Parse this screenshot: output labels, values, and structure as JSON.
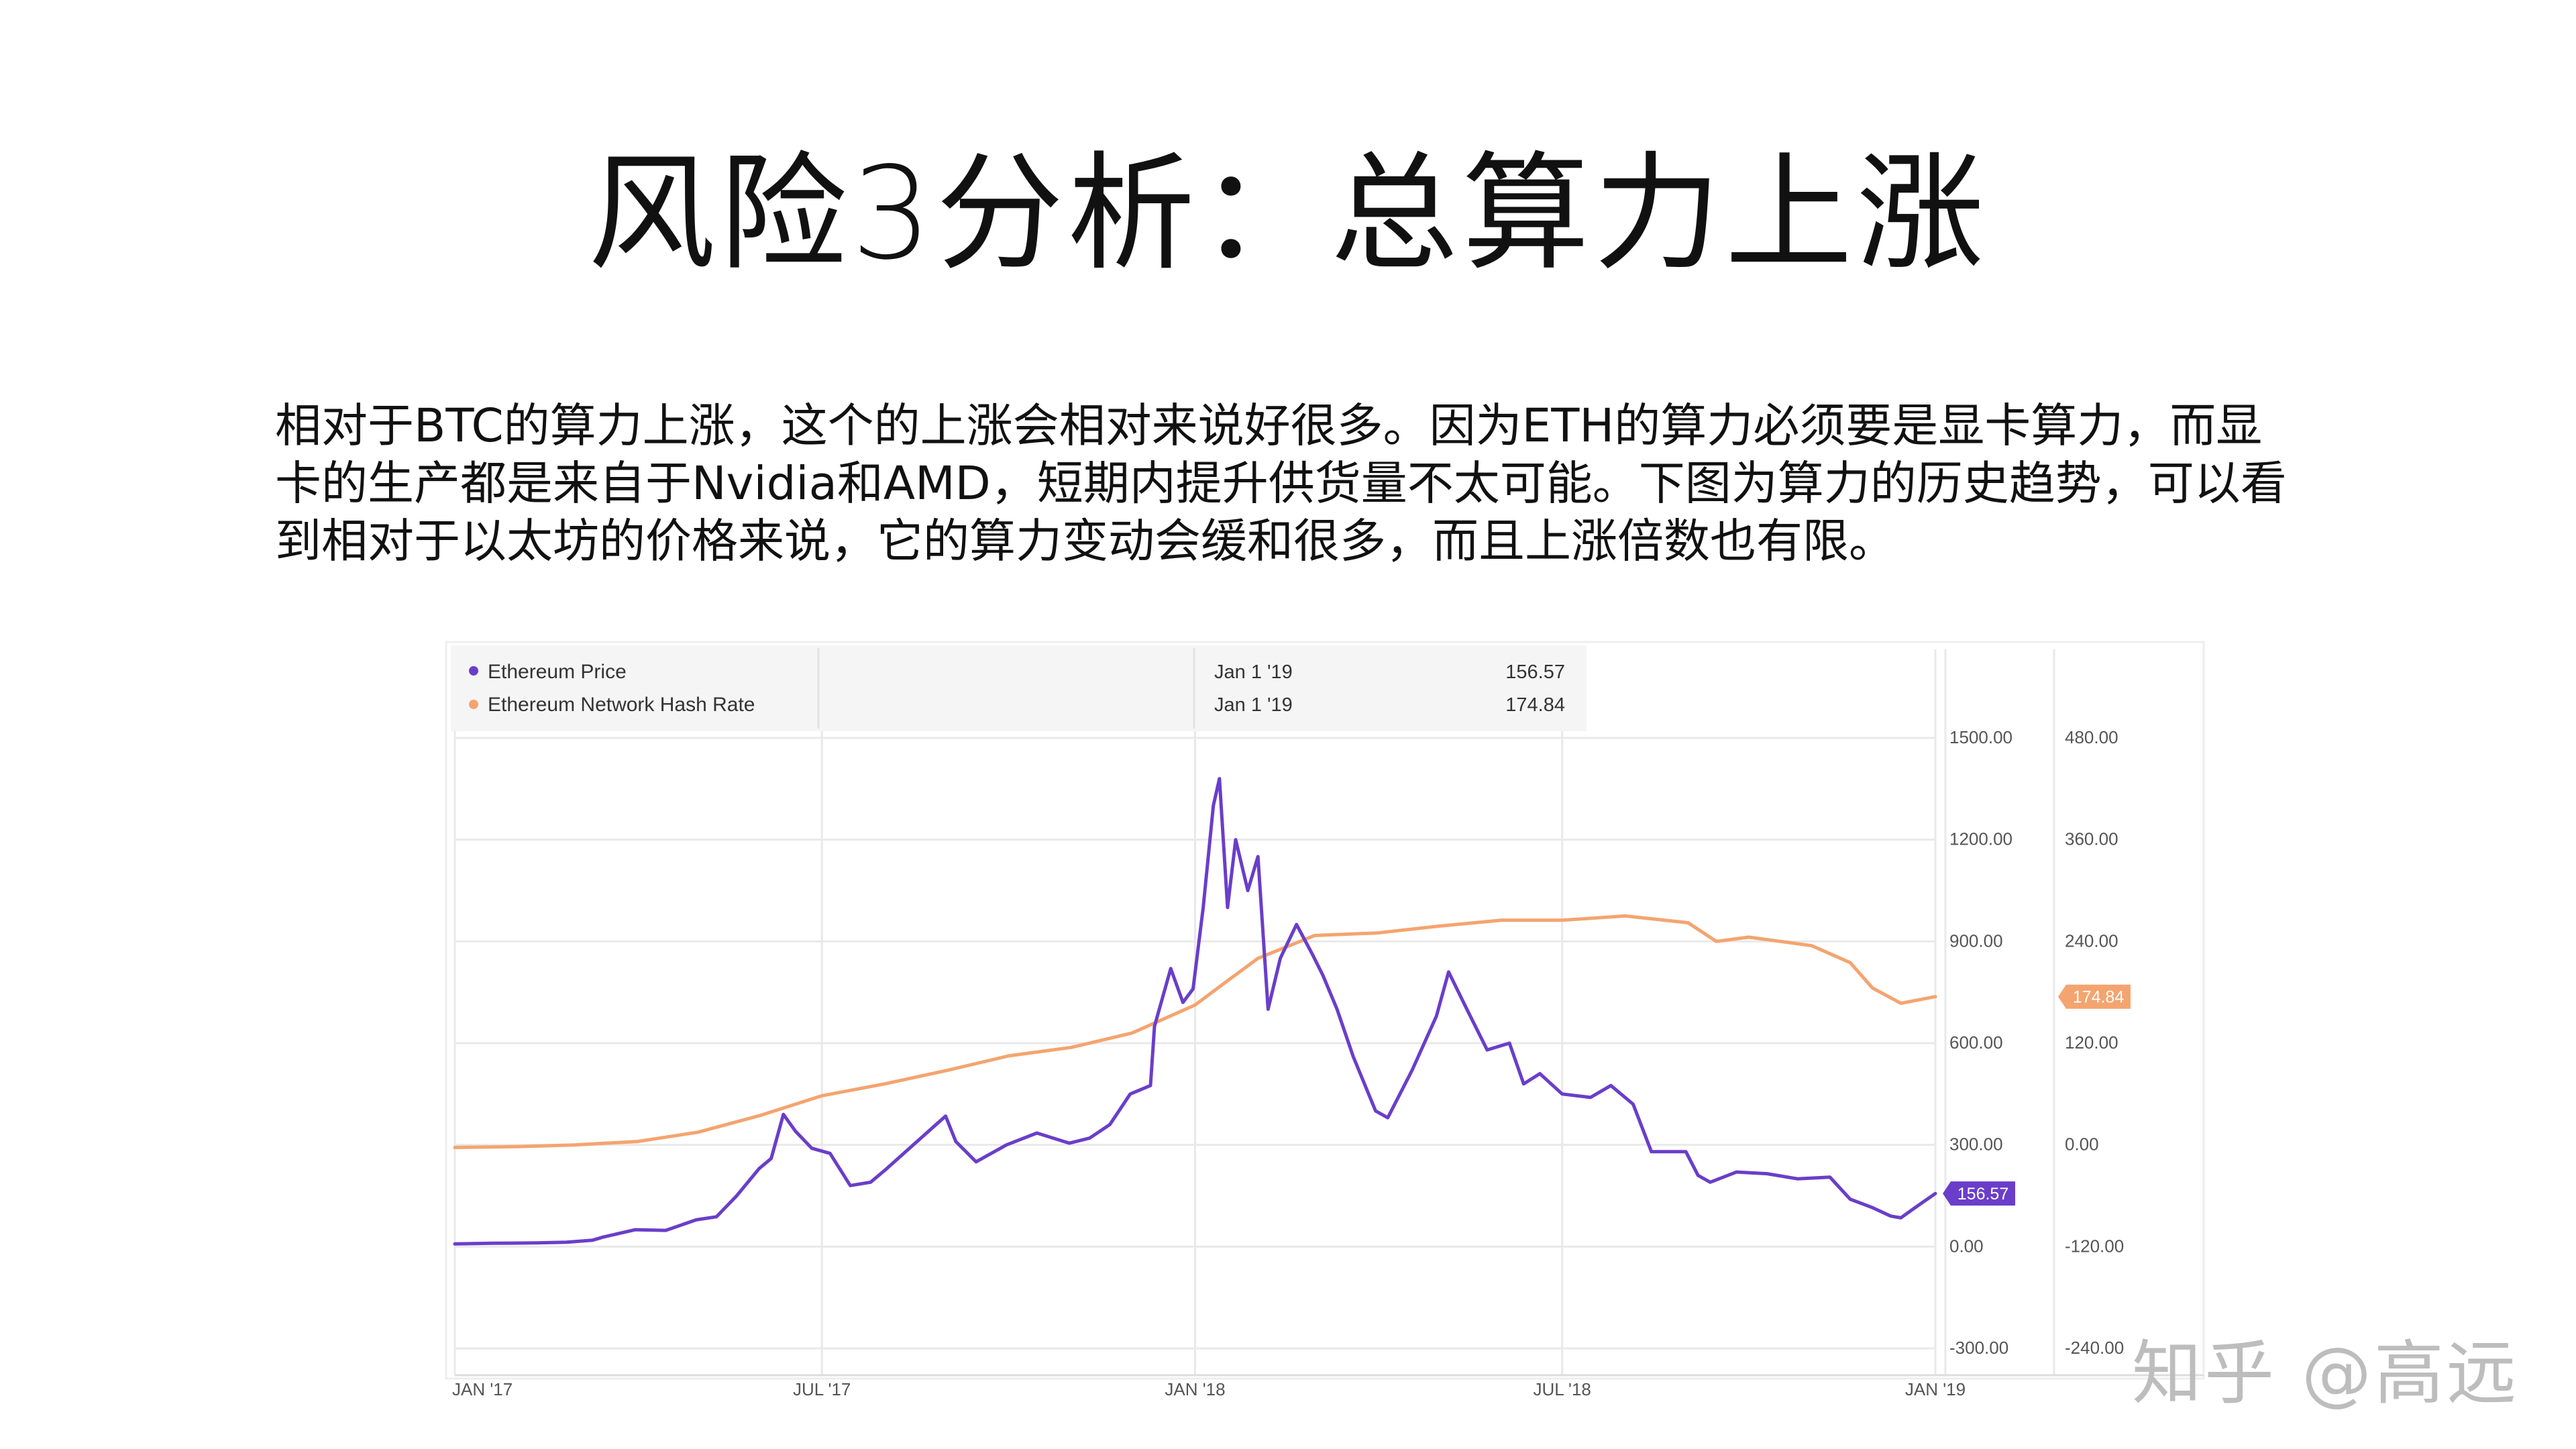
{
  "slide": {
    "title": "风险3分析：总算力上涨",
    "body_lines": [
      "相对于BTC的算力上涨，这个的上涨会相对来说好很多。因为ETH的算力必须要是显卡算力，而显",
      "卡的生产都是来自于Nvidia和AMD，短期内提升供货量不太可能。下图为算力的历史趋势，可以看",
      "到相对于以太坊的价格来说，它的算力变动会缓和很多，而且上涨倍数也有限。"
    ],
    "watermark": "知乎 @高远"
  },
  "colors": {
    "price": "#6a3ec9",
    "hash": "#f4a46f",
    "grid": "#e9e9e9",
    "axis_text": "#555555"
  },
  "chart_data": {
    "type": "line",
    "x_type": "date",
    "x_range": [
      "2017-01-01",
      "2019-01-01"
    ],
    "x_ticks": [
      {
        "date": "2017-01-01",
        "label": "JAN '17"
      },
      {
        "date": "2017-07-01",
        "label": "JUL '17"
      },
      {
        "date": "2018-01-01",
        "label": "JAN '18"
      },
      {
        "date": "2018-07-01",
        "label": "JUL '18"
      },
      {
        "date": "2019-01-01",
        "label": "JAN '19"
      }
    ],
    "y_left": {
      "range": [
        -300,
        1500
      ],
      "ticks": [
        "1500.00",
        "1200.00",
        "900.00",
        "600.00",
        "300.00",
        "0.00",
        "-300.00"
      ]
    },
    "y_right": {
      "range": [
        -240,
        480
      ],
      "ticks": [
        "480.00",
        "360.00",
        "240.00",
        "120.00",
        "0.00",
        "-120.00",
        "-240.00"
      ]
    },
    "grid": true,
    "legend_position": "top-left",
    "tooltip": {
      "rows": [
        {
          "name": "Ethereum Price",
          "date": "Jan 1 '19",
          "value": "156.57"
        },
        {
          "name": "Ethereum Network Hash Rate",
          "date": "Jan 1 '19",
          "value": "174.84"
        }
      ]
    },
    "series": [
      {
        "name": "Ethereum Price",
        "axis": "left",
        "end_label": "156.57",
        "points": [
          [
            "2017-01-01",
            8
          ],
          [
            "2017-01-20",
            10
          ],
          [
            "2017-02-10",
            11
          ],
          [
            "2017-02-25",
            13
          ],
          [
            "2017-03-10",
            19
          ],
          [
            "2017-03-15",
            28
          ],
          [
            "2017-03-31",
            50
          ],
          [
            "2017-04-15",
            48
          ],
          [
            "2017-04-30",
            79
          ],
          [
            "2017-05-10",
            88
          ],
          [
            "2017-05-20",
            150
          ],
          [
            "2017-05-31",
            230
          ],
          [
            "2017-06-06",
            260
          ],
          [
            "2017-06-12",
            390
          ],
          [
            "2017-06-18",
            340
          ],
          [
            "2017-06-26",
            290
          ],
          [
            "2017-07-05",
            275
          ],
          [
            "2017-07-15",
            180
          ],
          [
            "2017-07-25",
            190
          ],
          [
            "2017-08-01",
            225
          ],
          [
            "2017-08-15",
            300
          ],
          [
            "2017-08-31",
            385
          ],
          [
            "2017-09-05",
            310
          ],
          [
            "2017-09-15",
            250
          ],
          [
            "2017-09-30",
            300
          ],
          [
            "2017-10-15",
            335
          ],
          [
            "2017-10-31",
            305
          ],
          [
            "2017-11-10",
            320
          ],
          [
            "2017-11-20",
            360
          ],
          [
            "2017-11-30",
            450
          ],
          [
            "2017-12-10",
            475
          ],
          [
            "2017-12-12",
            650
          ],
          [
            "2017-12-20",
            820
          ],
          [
            "2017-12-26",
            720
          ],
          [
            "2017-12-31",
            760
          ],
          [
            "2018-01-05",
            1000
          ],
          [
            "2018-01-10",
            1300
          ],
          [
            "2018-01-13",
            1380
          ],
          [
            "2018-01-17",
            1000
          ],
          [
            "2018-01-21",
            1200
          ],
          [
            "2018-01-27",
            1050
          ],
          [
            "2018-02-01",
            1150
          ],
          [
            "2018-02-06",
            700
          ],
          [
            "2018-02-12",
            850
          ],
          [
            "2018-02-20",
            950
          ],
          [
            "2018-02-28",
            860
          ],
          [
            "2018-03-05",
            800
          ],
          [
            "2018-03-12",
            700
          ],
          [
            "2018-03-20",
            560
          ],
          [
            "2018-03-31",
            400
          ],
          [
            "2018-04-06",
            380
          ],
          [
            "2018-04-18",
            520
          ],
          [
            "2018-04-30",
            680
          ],
          [
            "2018-05-06",
            810
          ],
          [
            "2018-05-15",
            700
          ],
          [
            "2018-05-25",
            580
          ],
          [
            "2018-06-05",
            600
          ],
          [
            "2018-06-12",
            480
          ],
          [
            "2018-06-20",
            510
          ],
          [
            "2018-07-01",
            450
          ],
          [
            "2018-07-15",
            440
          ],
          [
            "2018-07-25",
            475
          ],
          [
            "2018-08-05",
            420
          ],
          [
            "2018-08-14",
            280
          ],
          [
            "2018-08-31",
            280
          ],
          [
            "2018-09-06",
            210
          ],
          [
            "2018-09-12",
            190
          ],
          [
            "2018-09-25",
            220
          ],
          [
            "2018-10-10",
            215
          ],
          [
            "2018-10-25",
            200
          ],
          [
            "2018-11-10",
            205
          ],
          [
            "2018-11-20",
            140
          ],
          [
            "2018-12-01",
            115
          ],
          [
            "2018-12-10",
            90
          ],
          [
            "2018-12-15",
            85
          ],
          [
            "2018-12-22",
            115
          ],
          [
            "2018-12-28",
            140
          ],
          [
            "2019-01-01",
            156.57
          ]
        ]
      },
      {
        "name": "Ethereum Network Hash Rate",
        "axis": "right",
        "end_label": "174.84",
        "points": [
          [
            "2017-01-01",
            -3
          ],
          [
            "2017-02-01",
            -2
          ],
          [
            "2017-03-01",
            0
          ],
          [
            "2017-04-01",
            4
          ],
          [
            "2017-05-01",
            15
          ],
          [
            "2017-06-01",
            35
          ],
          [
            "2017-07-01",
            58
          ],
          [
            "2017-08-01",
            72
          ],
          [
            "2017-09-01",
            88
          ],
          [
            "2017-10-01",
            105
          ],
          [
            "2017-11-01",
            115
          ],
          [
            "2017-12-01",
            132
          ],
          [
            "2018-01-01",
            165
          ],
          [
            "2018-01-15",
            190
          ],
          [
            "2018-02-01",
            220
          ],
          [
            "2018-03-01",
            247
          ],
          [
            "2018-04-01",
            250
          ],
          [
            "2018-05-01",
            258
          ],
          [
            "2018-06-01",
            265
          ],
          [
            "2018-07-01",
            265
          ],
          [
            "2018-08-01",
            270
          ],
          [
            "2018-09-01",
            262
          ],
          [
            "2018-09-15",
            240
          ],
          [
            "2018-10-01",
            245
          ],
          [
            "2018-11-01",
            235
          ],
          [
            "2018-11-20",
            215
          ],
          [
            "2018-12-01",
            185
          ],
          [
            "2018-12-15",
            167
          ],
          [
            "2019-01-01",
            174.84
          ]
        ]
      }
    ]
  }
}
